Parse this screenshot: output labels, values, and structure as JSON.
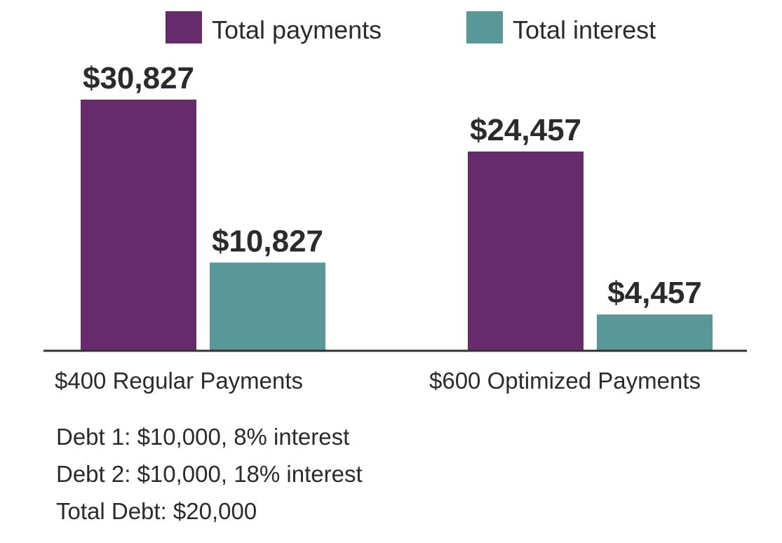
{
  "chart_data": {
    "type": "bar",
    "categories": [
      "$400 Regular Payments",
      "$600 Optimized Payments"
    ],
    "series": [
      {
        "name": "Total payments",
        "values": [
          30827,
          24457
        ],
        "labels": [
          "$30,827",
          "$24,457"
        ],
        "color": "#672b6c"
      },
      {
        "name": "Total interest",
        "values": [
          10827,
          4457
        ],
        "labels": [
          "$10,827",
          "$4,457"
        ],
        "color": "#589899"
      }
    ],
    "title": "",
    "xlabel": "",
    "ylabel": "",
    "legend": "top-center",
    "grid": false
  },
  "notes": [
    "Debt 1: $10,000, 8% interest",
    "Debt 2: $10,000, 18% interest",
    "Total Debt: $20,000"
  ]
}
